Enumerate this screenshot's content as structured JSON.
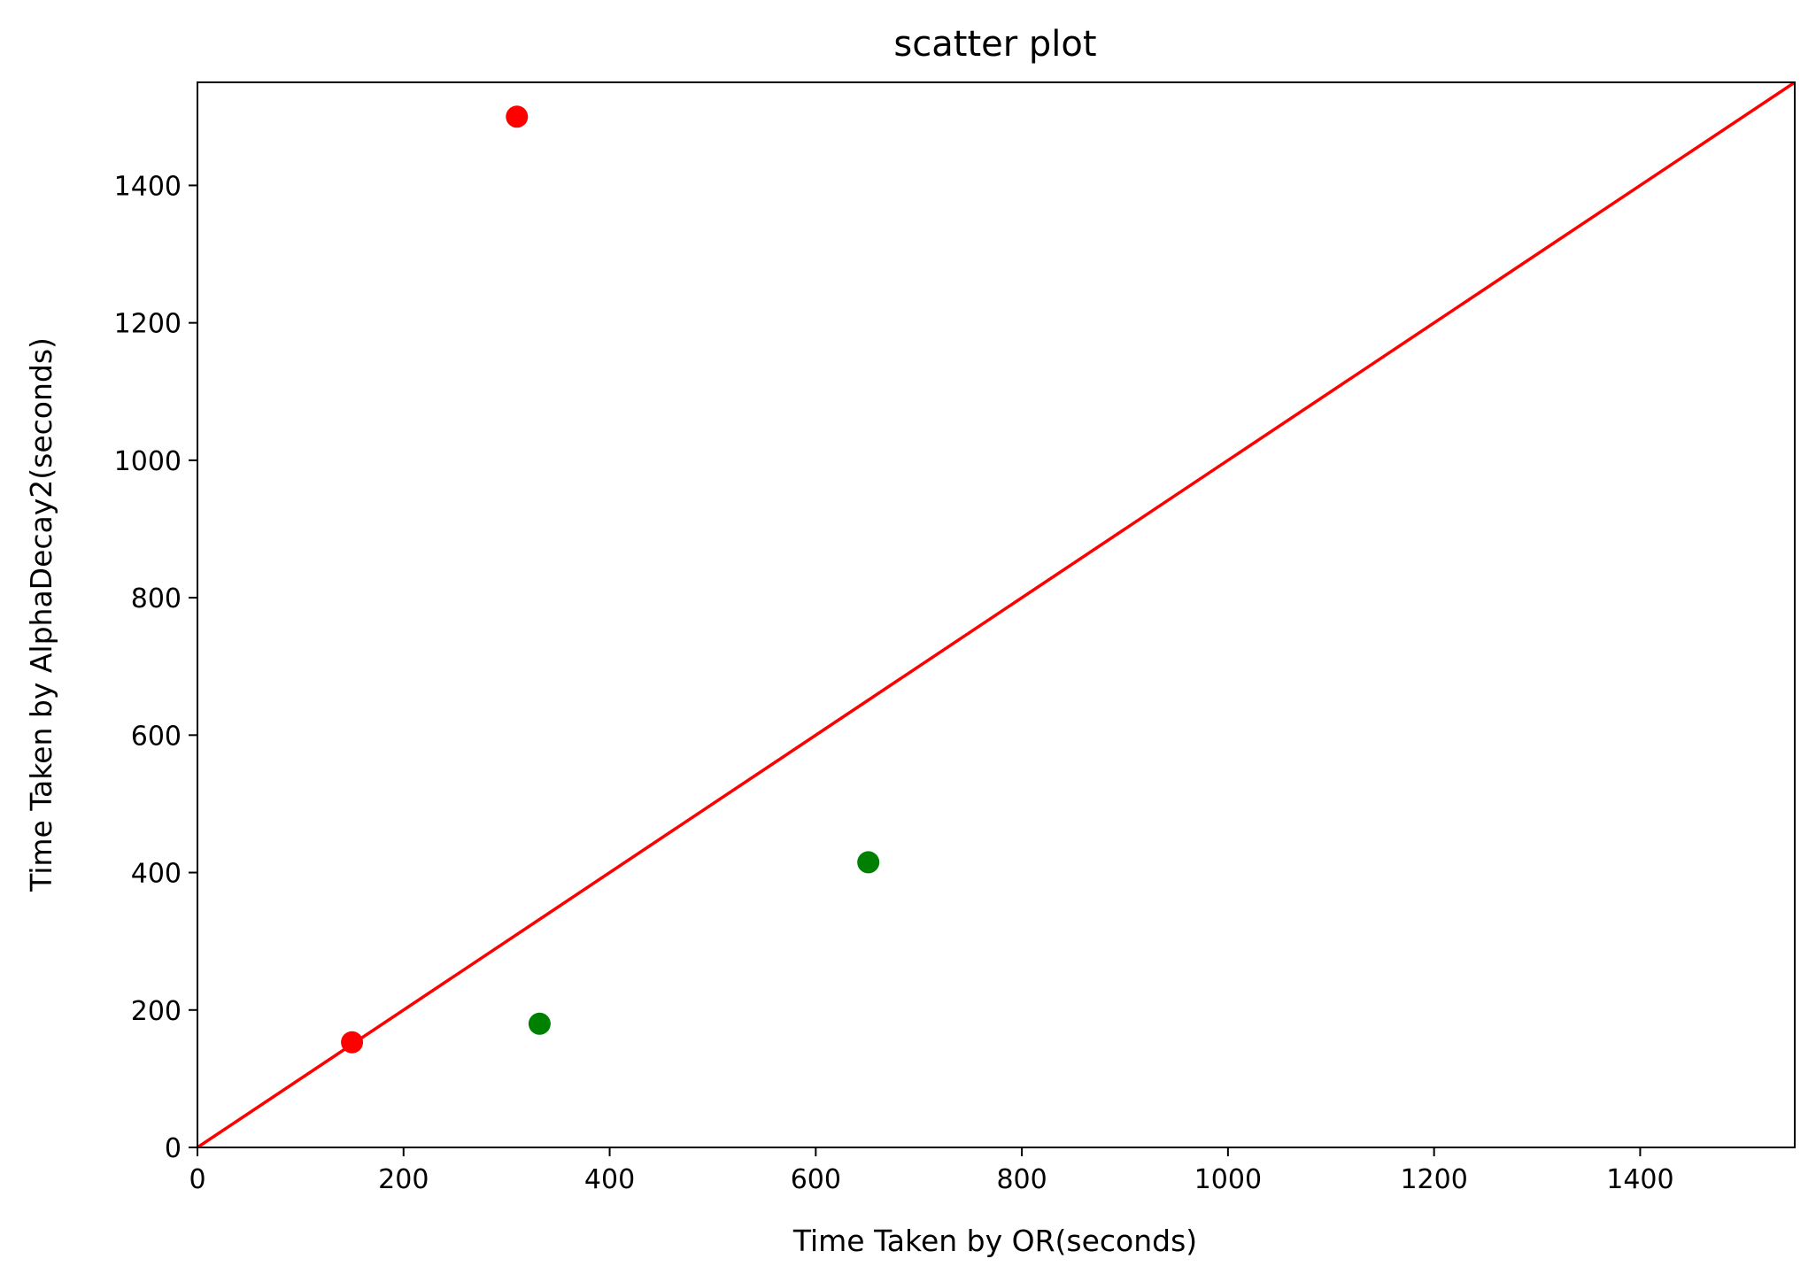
{
  "chart_data": {
    "type": "scatter",
    "title": "scatter plot",
    "xlabel": "Time Taken by OR(seconds)",
    "ylabel": "Time Taken by AlphaDecay2(seconds)",
    "xlim": [
      0,
      1550
    ],
    "ylim": [
      0,
      1550
    ],
    "x_ticks": [
      0,
      200,
      400,
      600,
      800,
      1000,
      1200,
      1400
    ],
    "y_ticks": [
      0,
      200,
      400,
      600,
      800,
      1000,
      1200,
      1400
    ],
    "x_tick_labels": [
      "0",
      "200",
      "400",
      "600",
      "800",
      "1000",
      "1200",
      "1400"
    ],
    "y_tick_labels": [
      "0",
      "200",
      "400",
      "600",
      "800",
      "1000",
      "1200",
      "1400"
    ],
    "grid": false,
    "series": [
      {
        "color": "#ff0000",
        "points": [
          {
            "x": 150,
            "y": 153
          },
          {
            "x": 310,
            "y": 1500
          }
        ]
      },
      {
        "color": "#008000",
        "points": [
          {
            "x": 332,
            "y": 180
          },
          {
            "x": 651,
            "y": 415
          }
        ]
      }
    ],
    "reference_line": {
      "color": "#ff0000",
      "from": [
        0,
        0
      ],
      "to": [
        1550,
        1550
      ]
    }
  }
}
